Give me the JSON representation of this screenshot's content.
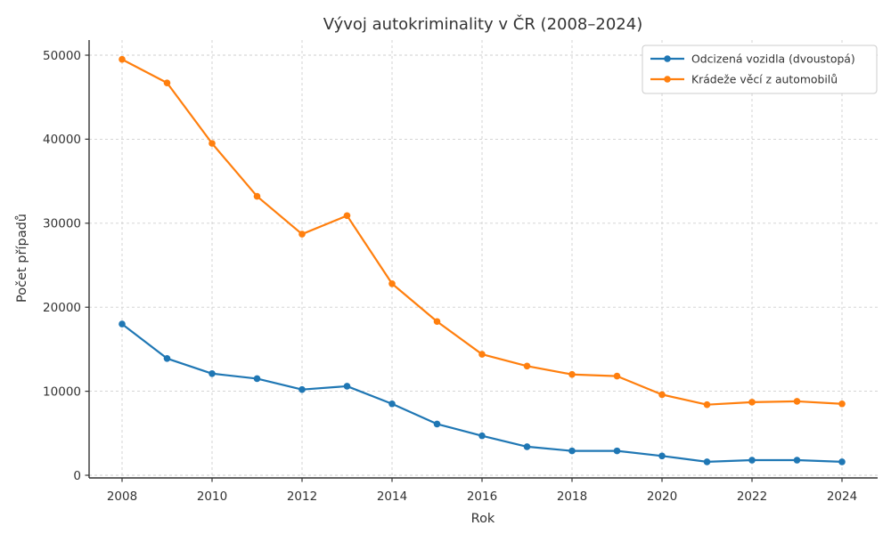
{
  "figure": {
    "background": "#ffffff",
    "text_color": "#333333",
    "grid_color": "#cfcfcf",
    "spine_color": "#333333",
    "legend_border_color": "#cccccc",
    "legend_background": "#ffffff"
  },
  "chart_data": {
    "type": "line",
    "title": "Vývoj autokriminality v ČR (2008–2024)",
    "xlabel": "Rok",
    "ylabel": "Počet případů",
    "x": [
      2008,
      2009,
      2010,
      2011,
      2012,
      2013,
      2014,
      2015,
      2016,
      2017,
      2018,
      2019,
      2020,
      2021,
      2022,
      2023,
      2024
    ],
    "xticks": [
      2008,
      2010,
      2012,
      2014,
      2016,
      2018,
      2020,
      2022,
      2024
    ],
    "yticks": [
      0,
      10000,
      20000,
      30000,
      40000,
      50000
    ],
    "ylim": [
      0,
      52000
    ],
    "grid": true,
    "grid_style": "dashed",
    "legend_position": "upper right",
    "marker": "circle",
    "series": [
      {
        "name": "Odcizená vozidla (dvoustopá)",
        "color": "#1f77b4",
        "values": [
          18000,
          13900,
          12100,
          11500,
          10200,
          10600,
          8500,
          6100,
          4700,
          3400,
          2900,
          2900,
          2300,
          1600,
          1800,
          1800,
          1600
        ]
      },
      {
        "name": "Krádeže věcí z automobilů",
        "color": "#ff7f0e",
        "values": [
          49500,
          46700,
          39500,
          33200,
          28700,
          30900,
          22800,
          18300,
          14400,
          13000,
          12000,
          11800,
          9600,
          8400,
          8700,
          8800,
          8500
        ]
      }
    ]
  }
}
